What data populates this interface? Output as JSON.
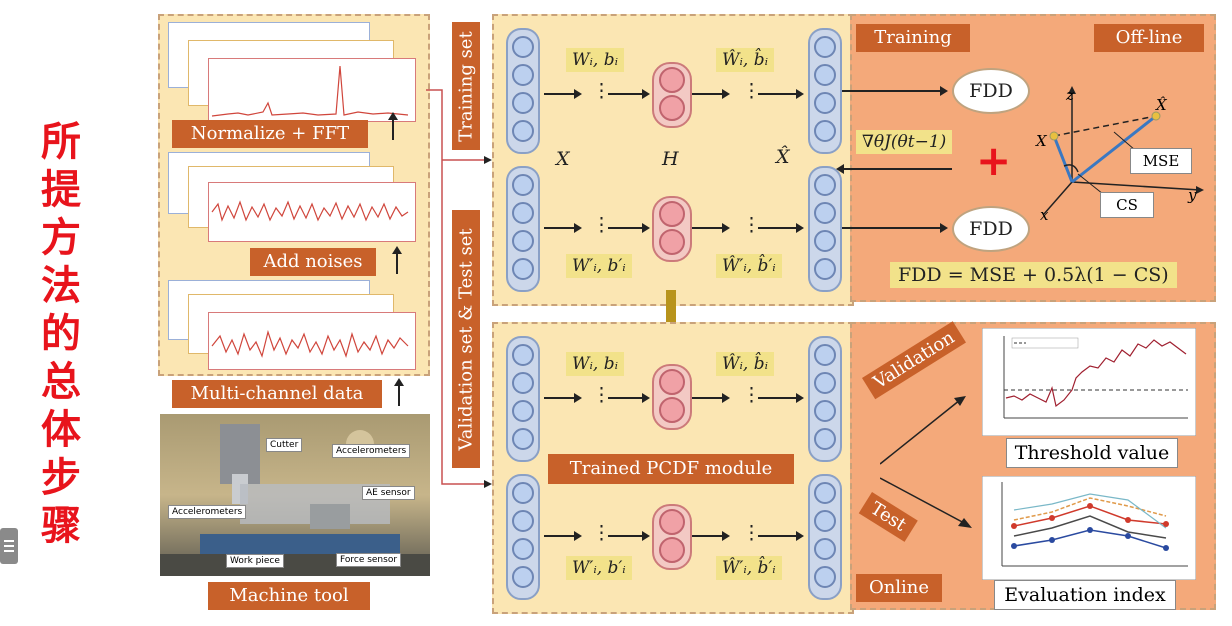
{
  "side_title": "所提方法的总体步骤",
  "left": {
    "normalize_label": "Normalize + FFT",
    "noise_label": "Add noises",
    "multichannel_label": "Multi-channel data",
    "machine_label": "Machine tool",
    "photo_labels": [
      "Cutter",
      "Accelerometers",
      "AE sensor",
      "Accelerometers",
      "Work piece",
      "Force sensor"
    ]
  },
  "vertical_labels": {
    "training": "Training set",
    "validation": "Validation set & Test set"
  },
  "network": {
    "x_label": "X",
    "h_label": "H",
    "xhat_label": "X̂",
    "wb_label": "Wᵢ, bᵢ",
    "wb_hat_label": "Ŵᵢ, b̂ᵢ",
    "wb_prime_label": "W′ᵢ, b′ᵢ",
    "wb_prime_hat_label": "Ŵ′ᵢ, b̂′ᵢ",
    "dots": "⋮",
    "trained_label": "Trained PCDF module"
  },
  "offline": {
    "training_label": "Training",
    "offline_label": "Off-line",
    "fdd_label": "FDD",
    "gradient_label": "∇θJ(θt−1)",
    "plus": "+",
    "mse_label": "MSE",
    "cs_label": "CS",
    "formula": "FDD = MSE + 0.5λ(1 − CS)",
    "axis_x": "x",
    "axis_y": "y",
    "axis_z": "z",
    "point_x": "X",
    "point_xhat": "X̂"
  },
  "online": {
    "online_label": "Online",
    "validation_label": "Validation",
    "test_label": "Test",
    "threshold_label": "Threshold value",
    "evaluation_label": "Evaluation index"
  },
  "colors": {
    "accent_orange": "#c8612a",
    "panel_yellow": "#fbe6b3",
    "panel_orange": "#f4a97a",
    "title_red": "#e8141c"
  }
}
